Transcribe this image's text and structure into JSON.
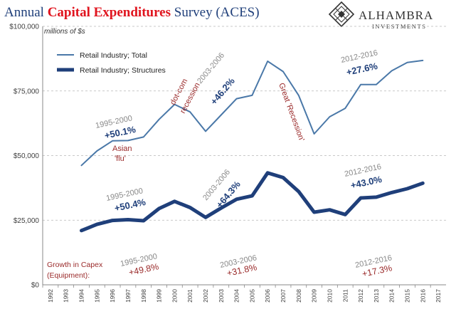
{
  "header": {
    "title_part1": "Annual ",
    "title_part2": "Capital Expenditures",
    "title_part3": " Survey (ACES)"
  },
  "logo": {
    "name": "ALHAMBRA",
    "sub": "INVESTMENTS",
    "icon": "diamond-lattice-icon"
  },
  "chart_data": {
    "type": "line",
    "unit_label": "millions of $s",
    "x": [
      1992,
      1993,
      1994,
      1995,
      1996,
      1997,
      1998,
      1999,
      2000,
      2001,
      2002,
      2003,
      2004,
      2005,
      2006,
      2007,
      2008,
      2009,
      2010,
      2011,
      2012,
      2013,
      2014,
      2015,
      2016,
      2017
    ],
    "xlim": [
      1992,
      2017
    ],
    "ylim": [
      0,
      100000
    ],
    "yticks": [
      0,
      25000,
      50000,
      75000,
      100000
    ],
    "ytick_labels": [
      "$0",
      "$25,000",
      "$50,000",
      "$75,000",
      "$100,000"
    ],
    "grid": "horizontal dashed",
    "legend_placement": "top-left",
    "series": [
      {
        "name": "Retail Industry; Total",
        "color": "#4a78a8",
        "x": [
          1994,
          1995,
          1996,
          1997,
          1998,
          1999,
          2000,
          2001,
          2002,
          2003,
          2004,
          2005,
          2006,
          2007,
          2008,
          2009,
          2010,
          2011,
          2012,
          2013,
          2014,
          2015,
          2016
        ],
        "values": [
          46200,
          51800,
          55700,
          55800,
          57200,
          64000,
          69800,
          66900,
          59400,
          65700,
          72000,
          73300,
          86500,
          82500,
          73300,
          58400,
          65000,
          68300,
          77500,
          77500,
          82800,
          86000,
          86800
        ]
      },
      {
        "name": "Retail Industry; Structures",
        "color": "#1f3f7a",
        "x": [
          1994,
          1995,
          1996,
          1997,
          1998,
          1999,
          2000,
          2001,
          2002,
          2003,
          2004,
          2005,
          2006,
          2007,
          2008,
          2009,
          2010,
          2011,
          2012,
          2013,
          2014,
          2015,
          2016
        ],
        "values": [
          21000,
          23400,
          24900,
          25200,
          24800,
          29500,
          32300,
          29900,
          26100,
          29700,
          33100,
          34400,
          43300,
          41500,
          36100,
          28100,
          29000,
          27200,
          33600,
          33900,
          35700,
          37200,
          39300
        ]
      }
    ],
    "annotations": [
      {
        "period": "1995-2000",
        "change": "+50.1%"
      },
      {
        "period": "2003-2006",
        "change": "+46.2%"
      },
      {
        "period": "2012-2016",
        "change": "+27.6%"
      },
      {
        "period": "1995-2000",
        "change": "+50.4%"
      },
      {
        "period": "2003-2006",
        "change": "+64.3%"
      },
      {
        "period": "2012-2016",
        "change": "+43.0%"
      }
    ],
    "events": {
      "asian_flu_line1": "Asian",
      "asian_flu_line2": "'flu'",
      "dotcom_line1": "dot-com",
      "dotcom_line2": "recession",
      "great_recession": "Great 'Recession'"
    },
    "capex": {
      "label_line1": "Growth in Capex",
      "label_line2": "(Equipment):",
      "items": [
        {
          "period": "1995-2000",
          "change": "+49.8%"
        },
        {
          "period": "2003-2006",
          "change": "+31.8%"
        },
        {
          "period": "2012-2016",
          "change": "+17.3%"
        }
      ]
    }
  }
}
